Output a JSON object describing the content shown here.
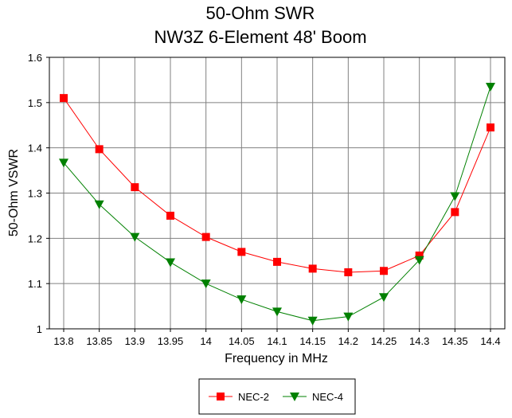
{
  "chart_data": {
    "type": "line",
    "title": [
      "50-Ohm SWR",
      "NW3Z 6-Element 48' Boom"
    ],
    "xlabel": "Frequency in MHz",
    "ylabel": "50-Ohm VSWR",
    "x": [
      13.8,
      13.85,
      13.9,
      13.95,
      14,
      14.05,
      14.1,
      14.15,
      14.2,
      14.25,
      14.3,
      14.35,
      14.4
    ],
    "x_tick_labels": [
      "13.8",
      "13.85",
      "13.9",
      "13.95",
      "14",
      "14.05",
      "14.1",
      "14.15",
      "14.2",
      "14.25",
      "14.3",
      "14.35",
      "14.4"
    ],
    "y_tick_labels": [
      "1",
      "1.1",
      "1.2",
      "1.3",
      "1.4",
      "1.5",
      "1.6"
    ],
    "y_ticks": [
      1,
      1.1,
      1.2,
      1.3,
      1.4,
      1.5,
      1.6
    ],
    "ylim": [
      1,
      1.6
    ],
    "grid": true,
    "legend_position": "bottom-center",
    "series": [
      {
        "name": "NEC-2",
        "color": "#ff0000",
        "marker": "square",
        "values": [
          1.51,
          1.397,
          1.313,
          1.25,
          1.203,
          1.17,
          1.148,
          1.133,
          1.125,
          1.128,
          1.162,
          1.258,
          1.445
        ]
      },
      {
        "name": "NEC-4",
        "color": "#008000",
        "marker": "triangle-down",
        "values": [
          1.367,
          1.275,
          1.203,
          1.147,
          1.1,
          1.065,
          1.038,
          1.018,
          1.027,
          1.07,
          1.152,
          1.293,
          1.535
        ]
      }
    ]
  }
}
